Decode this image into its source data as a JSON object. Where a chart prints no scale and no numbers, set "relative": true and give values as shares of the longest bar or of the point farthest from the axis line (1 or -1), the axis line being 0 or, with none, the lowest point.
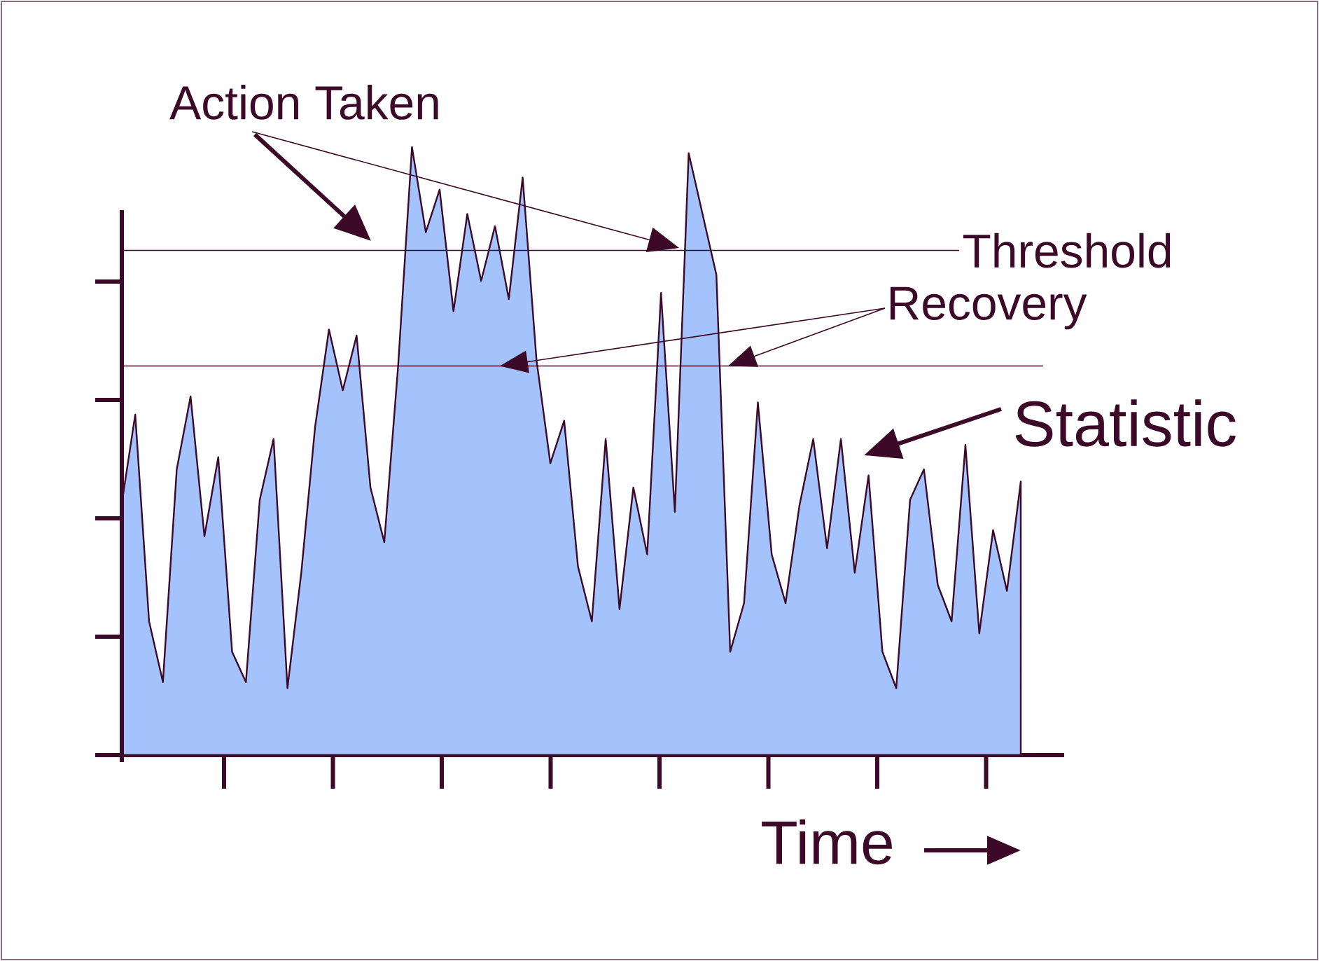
{
  "chart_data": {
    "type": "area",
    "relative": true,
    "xlabel": "Time",
    "categories": [
      null,
      null,
      null,
      null,
      null,
      null,
      null,
      null,
      null,
      null,
      null,
      null,
      null,
      null,
      null,
      null,
      null,
      null,
      null,
      null,
      null,
      null,
      null,
      null,
      null,
      null,
      null,
      null,
      null,
      null,
      null,
      null,
      null,
      null,
      null,
      null,
      null,
      null,
      null,
      null,
      null,
      null,
      null,
      null,
      null,
      null,
      null,
      null,
      null,
      null,
      null,
      null,
      null,
      null,
      null,
      null,
      null,
      null,
      null,
      null,
      null,
      null,
      null,
      null,
      null,
      null
    ],
    "values": [
      0.41,
      0.56,
      0.22,
      0.12,
      0.47,
      0.59,
      0.36,
      0.49,
      0.17,
      0.12,
      0.42,
      0.52,
      0.11,
      0.3,
      0.54,
      0.7,
      0.6,
      0.69,
      0.44,
      0.35,
      0.64,
      1,
      0.86,
      0.93,
      0.73,
      0.89,
      0.78,
      0.87,
      0.75,
      0.95,
      0.65,
      0.48,
      0.55,
      0.31,
      0.22,
      0.52,
      0.24,
      0.44,
      0.33,
      0.76,
      0.4,
      0.99,
      0.89,
      0.79,
      0.17,
      0.25,
      0.58,
      0.33,
      0.25,
      0.41,
      0.52,
      0.34,
      0.52,
      0.3,
      0.46,
      0.17,
      0.11,
      0.42,
      0.47,
      0.28,
      0.22,
      0.51,
      0.2,
      0.37,
      0.27,
      0.45
    ],
    "color": "#a4c2fb",
    "ref_lines": [
      {
        "axis": "y",
        "value": 0.83,
        "label": "Threshold",
        "color": "#3c0a28"
      },
      {
        "axis": "y",
        "value": 0.64,
        "label": "Recovery",
        "color": "#3c0a28"
      }
    ],
    "annotations": [
      "Action Taken",
      "Statistic"
    ]
  }
}
